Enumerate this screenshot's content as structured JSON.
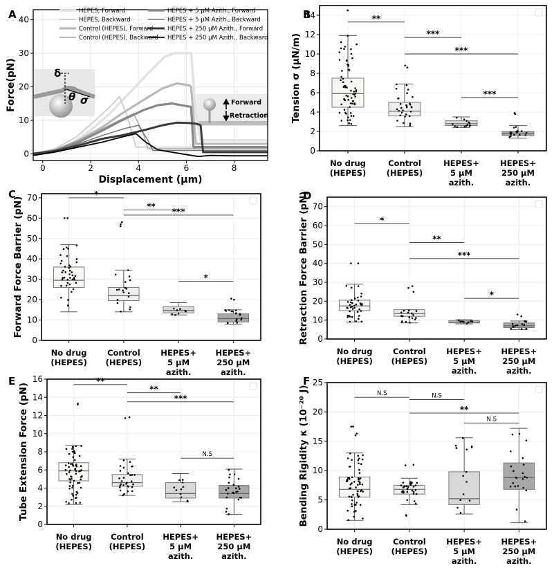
{
  "chart_data": [
    {
      "panel": "A",
      "type": "line",
      "xlabel": "Displacement (µm)",
      "ylabel": "Force(pN)",
      "xlim": [
        -0.4,
        9.4
      ],
      "ylim": [
        -2,
        43
      ],
      "xticks": [
        0,
        2,
        4,
        6,
        8
      ],
      "yticks": [
        0,
        10,
        20,
        30,
        40
      ],
      "inset_labels": {
        "delta": "δ",
        "theta": "θ",
        "sigma": "σ",
        "forward": "Forward",
        "retraction": "Retraction"
      },
      "series": [
        {
          "name": "HEPES, Forward",
          "color": "#e2e2e2",
          "width": 3.5,
          "x": [
            -0.4,
            0.4,
            1.2,
            2.0,
            2.8,
            3.6,
            4.4,
            5.1,
            5.5,
            6.0,
            6.2,
            6.4,
            6.6,
            9.4
          ],
          "y": [
            0,
            1,
            3,
            7,
            12,
            18,
            24,
            29,
            30,
            30,
            30,
            12,
            4,
            4
          ]
        },
        {
          "name": "HEPES, Backward",
          "color": "#cccccc",
          "width": 1.8,
          "x": [
            -0.4,
            0.5,
            1.4,
            2.2,
            2.8,
            3.2,
            3.5,
            3.9,
            9.4
          ],
          "y": [
            0,
            1.5,
            5,
            10,
            14,
            17,
            12,
            2,
            2
          ]
        },
        {
          "name": "Control (HEPES), Forward",
          "color": "#b9b9b9",
          "width": 3.2,
          "x": [
            -0.4,
            0.5,
            1.5,
            2.5,
            3.3,
            4.2,
            5.0,
            5.6,
            6.1,
            6.2,
            6.4,
            9.4
          ],
          "y": [
            0,
            1,
            4,
            8,
            12,
            16,
            19.5,
            21,
            20.5,
            20,
            3,
            3
          ]
        },
        {
          "name": "Control (HEPES), Backward",
          "color": "#a6a6a6",
          "width": 1.5,
          "x": [
            -0.4,
            0.5,
            1.5,
            2.5,
            3.2,
            3.8,
            4.2,
            4.4,
            9.4
          ],
          "y": [
            0,
            1,
            4,
            7.5,
            10,
            12,
            6,
            1.5,
            1.5
          ]
        },
        {
          "name": "HEPES + 5 µM Azith., Forward",
          "color": "#888888",
          "width": 3.2,
          "x": [
            -0.4,
            0.5,
            1.5,
            2.5,
            3.3,
            4.2,
            4.8,
            5.4,
            5.8,
            6.2,
            6.3,
            9.4
          ],
          "y": [
            0,
            1,
            3.5,
            7,
            10,
            13,
            14.5,
            15,
            14.5,
            14,
            2,
            2
          ]
        },
        {
          "name": "HEPES + 5 µM Azith., Backward",
          "color": "#777777",
          "width": 1.5,
          "x": [
            -0.4,
            0.5,
            1.5,
            2.5,
            3.4,
            4.0,
            4.4,
            4.6,
            9.4
          ],
          "y": [
            0,
            1,
            3,
            5.5,
            7.5,
            8.5,
            4,
            1,
            1
          ]
        },
        {
          "name": "HEPES + 250 µM Azith., Forward",
          "color": "#3a3a3a",
          "width": 3.0,
          "x": [
            -0.4,
            0.5,
            1.5,
            2.5,
            3.3,
            4.2,
            5.0,
            5.6,
            6.1,
            6.4,
            6.6,
            6.7,
            9.4
          ],
          "y": [
            0,
            0.8,
            2.5,
            4.5,
            5.5,
            7,
            8.5,
            9.3,
            9.2,
            9.0,
            8.5,
            0.5,
            0.5
          ]
        },
        {
          "name": "HEPES + 250 µM Azith., Backward",
          "color": "#000000",
          "width": 1.8,
          "x": [
            -0.4,
            0.5,
            1.5,
            2.5,
            3.3,
            3.9,
            4.3,
            4.8,
            5.8,
            6.5,
            7.0,
            7.8,
            9.4
          ],
          "y": [
            -0.5,
            0.5,
            2,
            3.5,
            5,
            6,
            3.5,
            1.2,
            0,
            -0.8,
            -0.5,
            -0.6,
            -0.6
          ]
        }
      ]
    },
    {
      "panel": "B",
      "type": "box",
      "ylabel": "Tension σ (μN/m)",
      "ylim": [
        0,
        15
      ],
      "yticks": [
        0,
        2,
        4,
        6,
        8,
        10,
        12,
        14
      ],
      "categories": [
        [
          "No drug",
          "(HEPES)"
        ],
        [
          "Control",
          "(HEPES)"
        ],
        [
          "HEPES+",
          "5 μM",
          "azith."
        ],
        [
          "HEPES+",
          "250 μM",
          "azith."
        ]
      ],
      "boxes": [
        {
          "min": 2.6,
          "q1": 4.5,
          "median": 5.9,
          "q3": 7.5,
          "max": 11.9,
          "fill": "#f7f7f4",
          "n": 65,
          "outliers": [
            14.5,
            14.5
          ]
        },
        {
          "min": 2.5,
          "q1": 3.6,
          "median": 4.1,
          "q3": 5.0,
          "max": 6.9,
          "fill": "#eeeeee",
          "n": 30,
          "outliers": [
            8.8,
            8.6
          ]
        },
        {
          "min": 2.4,
          "q1": 2.6,
          "median": 2.8,
          "q3": 3.1,
          "max": 3.5,
          "fill": "#d9d9d9",
          "n": 14,
          "outliers": []
        },
        {
          "min": 1.3,
          "q1": 1.6,
          "median": 1.8,
          "q3": 2.0,
          "max": 2.6,
          "fill": "#a8a8a8",
          "n": 16,
          "outliers": [
            3.9,
            3.8
          ]
        }
      ],
      "significance": [
        {
          "from": 0,
          "to": 1,
          "y": 13.3,
          "label": "**"
        },
        {
          "from": 1,
          "to": 2,
          "y": 11.7,
          "label": "***"
        },
        {
          "from": 1,
          "to": 3,
          "y": 10.0,
          "label": "***"
        },
        {
          "from": 2,
          "to": 3,
          "y": 5.5,
          "label": "***"
        }
      ]
    },
    {
      "panel": "C",
      "type": "box",
      "ylabel": "Forward Force Barrier (pN)",
      "ylim": [
        0,
        72
      ],
      "yticks": [
        0,
        10,
        20,
        30,
        40,
        50,
        60,
        70
      ],
      "categories": [
        [
          "No drug",
          "(HEPES)"
        ],
        [
          "Control",
          "(HEPES)"
        ],
        [
          "HEPES+",
          "5 μM",
          "azith."
        ],
        [
          "HEPES+",
          "250 μM",
          "azith."
        ]
      ],
      "boxes": [
        {
          "min": 14,
          "q1": 26,
          "median": 29.5,
          "q3": 36,
          "max": 47,
          "fill": "#f7f7f4",
          "n": 40,
          "outliers": [
            60,
            60
          ]
        },
        {
          "min": 14,
          "q1": 19.5,
          "median": 22,
          "q3": 26,
          "max": 34.5,
          "fill": "#eeeeee",
          "n": 18,
          "outliers": [
            58,
            57,
            56
          ]
        },
        {
          "min": 12.5,
          "q1": 13.5,
          "median": 14.7,
          "q3": 16.5,
          "max": 18.5,
          "fill": "#d9d9d9",
          "n": 8,
          "outliers": []
        },
        {
          "min": 8,
          "q1": 9,
          "median": 10.7,
          "q3": 13,
          "max": 15,
          "fill": "#a8a8a8",
          "n": 16,
          "outliers": [
            20.5,
            20
          ]
        }
      ],
      "significance": [
        {
          "from": 0,
          "to": 1,
          "y": 70,
          "label": "*"
        },
        {
          "from": 1,
          "to": 2,
          "y": 64,
          "label": "**"
        },
        {
          "from": 1,
          "to": 3,
          "y": 61.5,
          "label": "***"
        },
        {
          "from": 2,
          "to": 3,
          "y": 29,
          "label": "*"
        }
      ]
    },
    {
      "panel": "D",
      "type": "box",
      "ylabel": "Retraction Force Barrier (pN)",
      "ylim": [
        0,
        75
      ],
      "yticks": [
        0,
        10,
        20,
        30,
        40,
        50,
        60,
        70
      ],
      "categories": [
        [
          "No drug",
          "(HEPES)"
        ],
        [
          "Control",
          "(HEPES)"
        ],
        [
          "HEPES+",
          "5 μM",
          "azith."
        ],
        [
          "HEPES+",
          "250 μM",
          "azith."
        ]
      ],
      "boxes": [
        {
          "min": 9,
          "q1": 15,
          "median": 17.5,
          "q3": 20.5,
          "max": 29,
          "fill": "#f7f7f4",
          "n": 40,
          "outliers": [
            40,
            40
          ]
        },
        {
          "min": 8.5,
          "q1": 12,
          "median": 13.5,
          "q3": 15.5,
          "max": 15.5,
          "fill": "#eeeeee",
          "n": 18,
          "outliers": [
            28,
            27,
            25
          ]
        },
        {
          "min": 8,
          "q1": 8.5,
          "median": 9,
          "q3": 9.8,
          "max": 10.2,
          "fill": "#d9d9d9",
          "n": 8,
          "outliers": []
        },
        {
          "min": 5,
          "q1": 6,
          "median": 7,
          "q3": 8.5,
          "max": 9.5,
          "fill": "#a8a8a8",
          "n": 14,
          "outliers": [
            13,
            12
          ]
        }
      ],
      "significance": [
        {
          "from": 0,
          "to": 1,
          "y": 61,
          "label": "*"
        },
        {
          "from": 1,
          "to": 2,
          "y": 51,
          "label": "**"
        },
        {
          "from": 1,
          "to": 3,
          "y": 42.5,
          "label": "***"
        },
        {
          "from": 2,
          "to": 3,
          "y": 21.5,
          "label": "*"
        }
      ]
    },
    {
      "panel": "E",
      "type": "box",
      "ylabel": "Tube Extension Force (pN)",
      "ylim": [
        0,
        16
      ],
      "yticks": [
        0,
        2,
        4,
        6,
        8,
        10,
        12,
        14,
        16
      ],
      "categories": [
        [
          "No drug",
          "(HEPES)"
        ],
        [
          "Control",
          "(HEPES)"
        ],
        [
          "HEPES+",
          "5 μM",
          "azith."
        ],
        [
          "HEPES+",
          "250 μM",
          "azith."
        ]
      ],
      "boxes": [
        {
          "min": 2.2,
          "q1": 4.8,
          "median": 5.9,
          "q3": 6.8,
          "max": 8.7,
          "fill": "#f7f7f4",
          "n": 65,
          "outliers": [
            13.3,
            13.2
          ]
        },
        {
          "min": 3.2,
          "q1": 4.2,
          "median": 4.6,
          "q3": 5.5,
          "max": 7.2,
          "fill": "#eeeeee",
          "n": 30,
          "outliers": [
            11.8,
            11.7
          ]
        },
        {
          "min": 2.5,
          "q1": 2.9,
          "median": 3.4,
          "q3": 4.6,
          "max": 5.6,
          "fill": "#d9d9d9",
          "n": 12,
          "outliers": []
        },
        {
          "min": 1.1,
          "q1": 2.9,
          "median": 3.4,
          "q3": 4.3,
          "max": 6.1,
          "fill": "#a8a8a8",
          "n": 25,
          "outliers": []
        }
      ],
      "significance": [
        {
          "from": 0,
          "to": 1,
          "y": 15.4,
          "label": "**"
        },
        {
          "from": 1,
          "to": 2,
          "y": 14.5,
          "label": "**"
        },
        {
          "from": 1,
          "to": 3,
          "y": 13.5,
          "label": "***"
        },
        {
          "from": 2,
          "to": 3,
          "y": 7.3,
          "label": "N.S"
        }
      ]
    },
    {
      "panel": "F",
      "type": "box",
      "ylabel": "Bending Rigidity κ (10⁻²⁰ J)",
      "ylim": [
        0,
        25
      ],
      "yticks": [
        0,
        5,
        10,
        15,
        20,
        25
      ],
      "categories": [
        [
          "No drug",
          "(HEPES)"
        ],
        [
          "Control",
          "(HEPES)"
        ],
        [
          "HEPES+",
          "5 μM",
          "azith."
        ],
        [
          "HEPES+",
          "250 μM",
          "azith."
        ]
      ],
      "boxes": [
        {
          "min": 1.5,
          "q1": 5.5,
          "median": 6.8,
          "q3": 8.9,
          "max": 13,
          "fill": "#f7f7f4",
          "n": 65,
          "outliers": [
            17.5,
            17.5,
            16.3,
            16
          ]
        },
        {
          "min": 4.2,
          "q1": 6,
          "median": 6.8,
          "q3": 7.5,
          "max": 8.7,
          "fill": "#eeeeee",
          "n": 30,
          "outliers": [
            11,
            10.9,
            2.3,
            2.4
          ]
        },
        {
          "min": 2.6,
          "q1": 4.2,
          "median": 5.2,
          "q3": 9.8,
          "max": 15.6,
          "fill": "#d9d9d9",
          "n": 14,
          "outliers": []
        },
        {
          "min": 1.1,
          "q1": 6.8,
          "median": 8.8,
          "q3": 11.3,
          "max": 17.2,
          "fill": "#a8a8a8",
          "n": 22,
          "outliers": []
        }
      ],
      "significance": [
        {
          "from": 0,
          "to": 1,
          "y": 22.5,
          "label": "N.S"
        },
        {
          "from": 1,
          "to": 2,
          "y": 22.1,
          "label": "N.S"
        },
        {
          "from": 1,
          "to": 3,
          "y": 19.8,
          "label": "**"
        },
        {
          "from": 2,
          "to": 3,
          "y": 18.1,
          "label": "N.S"
        }
      ]
    }
  ]
}
